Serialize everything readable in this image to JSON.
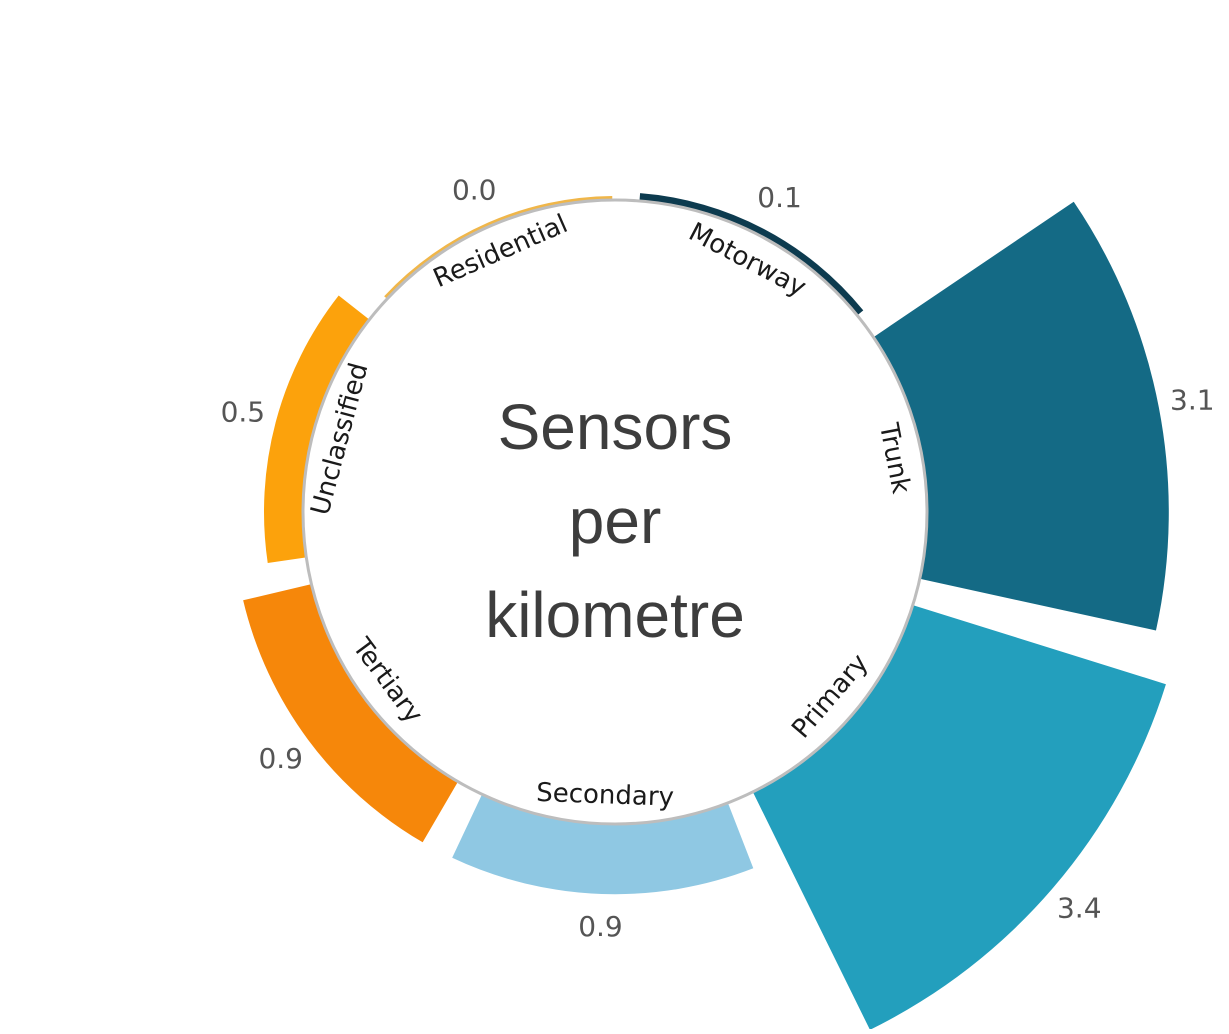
{
  "chart_data": {
    "type": "radial-bar",
    "title_lines": [
      "Sensors",
      "per",
      "kilometre"
    ],
    "categories": [
      {
        "label": "Motorway",
        "value": 0.1,
        "value_label": "0.1",
        "color": "#0d3b4f"
      },
      {
        "label": "Trunk",
        "value": 3.1,
        "value_label": "3.1",
        "color": "#146a85"
      },
      {
        "label": "Primary",
        "value": 3.4,
        "value_label": "3.4",
        "color": "#239fbd"
      },
      {
        "label": "Secondary",
        "value": 0.9,
        "value_label": "0.9",
        "color": "#8fc8e3"
      },
      {
        "label": "Tertiary",
        "value": 0.9,
        "value_label": "0.9",
        "color": "#f6870a"
      },
      {
        "label": "Unclassified",
        "value": 0.5,
        "value_label": "0.5",
        "color": "#fca20c"
      },
      {
        "label": "Residential",
        "value": 0.0,
        "value_label": "0.0",
        "color": "#f0b649"
      }
    ],
    "ring_color": "#bdbdbd"
  }
}
